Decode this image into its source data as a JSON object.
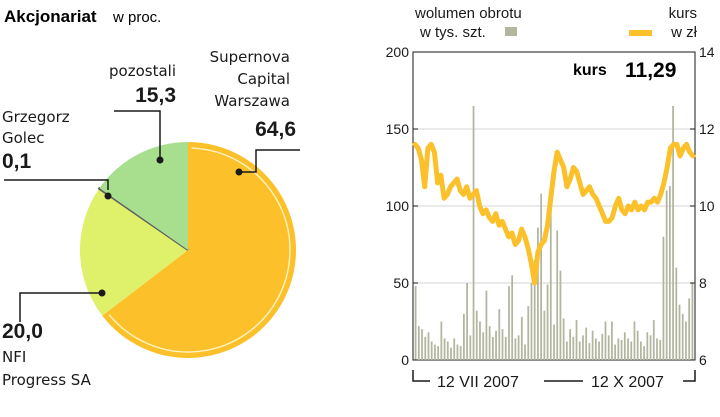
{
  "chart_data": [
    {
      "type": "pie",
      "title": "Akcjonariat",
      "subtitle": "w proc.",
      "slices": [
        {
          "name_lines": [
            "Supernova",
            "Capital",
            "Warszawa"
          ],
          "value": 64.6,
          "value_label": "64,6",
          "color": "#fcc12a"
        },
        {
          "name_lines": [
            "NFI",
            "Progress SA"
          ],
          "value": 20.0,
          "value_label": "20,0",
          "color": "#dff06a"
        },
        {
          "name_lines": [
            "Grzegorz",
            "Golec"
          ],
          "value": 0.1,
          "value_label": "0,1",
          "color": "#606060"
        },
        {
          "name_lines": [
            "pozostali"
          ],
          "value": 15.3,
          "value_label": "15,3",
          "color": "#a7df8f"
        }
      ]
    },
    {
      "type": "bar+line",
      "legend": {
        "volume_line1": "wolumen obrotu",
        "volume_line2": "w tys. szt.",
        "price_line1": "kurs",
        "price_line2": "w zł"
      },
      "callout": {
        "label": "kurs",
        "value": "11,29"
      },
      "y_left": {
        "min": 0,
        "max": 200,
        "ticks": [
          0,
          50,
          100,
          150,
          200
        ],
        "labels": [
          "0",
          "50",
          "100",
          "150",
          "200"
        ]
      },
      "y_right": {
        "min": 6,
        "max": 14,
        "ticks": [
          6,
          8,
          10,
          12,
          14
        ],
        "labels": [
          "6",
          "8",
          "10",
          "12",
          "14"
        ]
      },
      "x_labels": [
        "12 VII 2007",
        "12 X 2007"
      ],
      "colors": {
        "volume": "#b3b69f",
        "price": "#fcc12a"
      },
      "volume": [
        48,
        22,
        20,
        15,
        18,
        12,
        10,
        9,
        25,
        14,
        12,
        8,
        14,
        10,
        9,
        30,
        50,
        16,
        165,
        32,
        25,
        18,
        45,
        22,
        15,
        19,
        33,
        20,
        15,
        48,
        55,
        14,
        16,
        28,
        10,
        35,
        50,
        65,
        86,
        108,
        32,
        49,
        100,
        23,
        84,
        58,
        27,
        12,
        20,
        15,
        26,
        12,
        16,
        21,
        11,
        19,
        14,
        12,
        17,
        25,
        16,
        25,
        10,
        14,
        13,
        18,
        14,
        12,
        25,
        19,
        12,
        9,
        18,
        16,
        26,
        14,
        13,
        80,
        110,
        113,
        165,
        60,
        36,
        30,
        25,
        40,
        50
      ],
      "price": [
        11.6,
        11.5,
        11.2,
        10.5,
        11.5,
        11.6,
        11.4,
        10.6,
        10.8,
        10.2,
        10.3,
        10.5,
        10.6,
        10.7,
        10.4,
        10.3,
        10.5,
        10.2,
        10.3,
        10.4,
        10.0,
        9.8,
        9.9,
        9.7,
        9.6,
        9.8,
        9.5,
        9.6,
        9.4,
        9.2,
        9.3,
        9.0,
        9.1,
        9.4,
        9.2,
        8.9,
        8.5,
        8.0,
        8.8,
        9.0,
        9.1,
        9.5,
        10.2,
        10.9,
        11.4,
        11.2,
        11.0,
        10.5,
        10.7,
        11.0,
        10.9,
        10.6,
        10.3,
        10.4,
        10.5,
        10.3,
        10.2,
        10.0,
        9.8,
        9.6,
        9.6,
        9.7,
        10.0,
        10.2,
        9.9,
        9.8,
        10.0,
        9.9,
        10.1,
        9.9,
        10.0,
        9.9,
        10.1,
        10.1,
        10.2,
        10.1,
        10.3,
        10.6,
        11.0,
        11.5,
        11.6,
        11.6,
        11.3,
        11.5,
        11.6,
        11.4,
        11.3
      ]
    }
  ]
}
